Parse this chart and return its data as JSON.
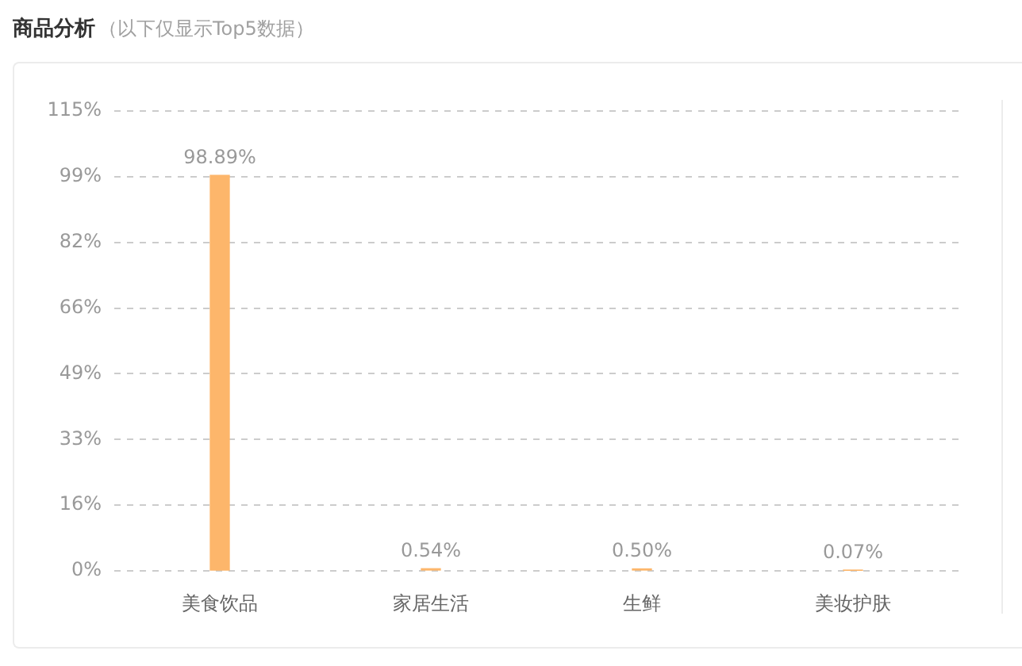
{
  "chart_data": {
    "type": "bar",
    "title": "商品分析",
    "subtitle": "（以下仅显示Top5数据）",
    "categories": [
      "美食饮品",
      "家居生活",
      "生鲜",
      "美妆护肤"
    ],
    "values": [
      98.89,
      0.54,
      0.5,
      0.07
    ],
    "value_labels": [
      "98.89%",
      "0.54%",
      "0.50%",
      "0.07%"
    ],
    "color": "#fdb66b",
    "ylim": [
      0,
      115
    ],
    "yticks": [
      {
        "value": 0,
        "label": "0%"
      },
      {
        "value": 16.43,
        "label": "16%"
      },
      {
        "value": 32.86,
        "label": "33%"
      },
      {
        "value": 49.29,
        "label": "49%"
      },
      {
        "value": 65.71,
        "label": "66%"
      },
      {
        "value": 82.14,
        "label": "82%"
      },
      {
        "value": 98.57,
        "label": "99%"
      },
      {
        "value": 115,
        "label": "115%"
      }
    ],
    "grid": "y",
    "legend": false
  }
}
